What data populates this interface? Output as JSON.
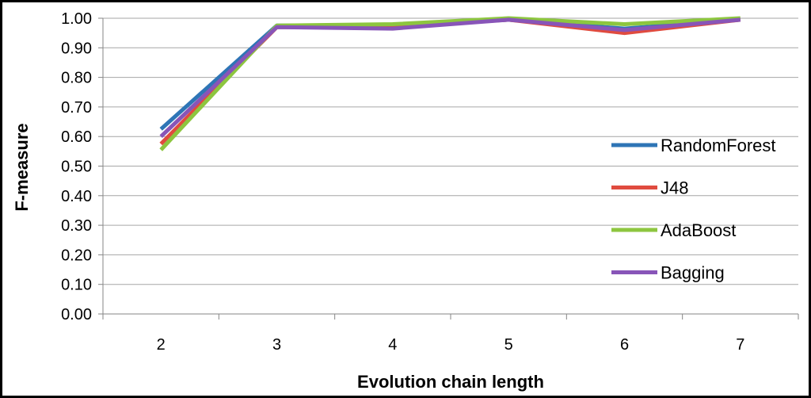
{
  "chart_data": {
    "type": "line",
    "xlabel": "Evolution chain length",
    "ylabel": "F-measure",
    "categories": [
      "2",
      "3",
      "4",
      "5",
      "6",
      "7"
    ],
    "ylim": [
      0,
      1
    ],
    "yticks": [
      "0.00",
      "0.10",
      "0.20",
      "0.30",
      "0.40",
      "0.50",
      "0.60",
      "0.70",
      "0.80",
      "0.90",
      "1.00"
    ],
    "grid": "horizontal",
    "legend_position": "right",
    "series": [
      {
        "name": "RandomForest",
        "color": "#2e75b6",
        "values": [
          0.625,
          0.975,
          0.975,
          0.995,
          0.965,
          0.995
        ]
      },
      {
        "name": "J48",
        "color": "#e04b3f",
        "values": [
          0.575,
          0.97,
          0.97,
          0.995,
          0.95,
          0.995
        ]
      },
      {
        "name": "AdaBoost",
        "color": "#8dc63f",
        "values": [
          0.555,
          0.975,
          0.98,
          1.0,
          0.98,
          1.0
        ]
      },
      {
        "name": "Bagging",
        "color": "#8855b8",
        "values": [
          0.6,
          0.97,
          0.965,
          0.995,
          0.96,
          0.995
        ]
      }
    ]
  }
}
